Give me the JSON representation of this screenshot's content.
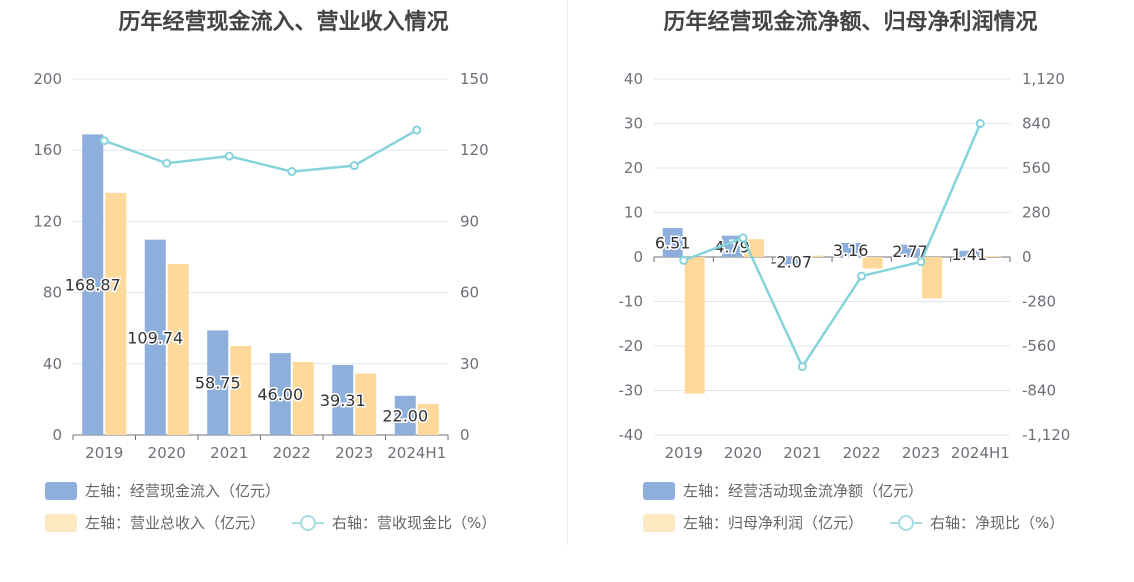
{
  "chart_data": [
    {
      "type": "bar",
      "title": "历年经营现金流入、营业收入情况",
      "categories": [
        "2019",
        "2020",
        "2021",
        "2022",
        "2023",
        "2024H1"
      ],
      "series": [
        {
          "name": "左轴：经营现金流入（亿元）",
          "axis": "left",
          "type": "bar",
          "color": "#8eaedb",
          "values": [
            168.87,
            109.74,
            58.75,
            46.0,
            39.31,
            22.0
          ]
        },
        {
          "name": "左轴：营业总收入（亿元）",
          "axis": "left",
          "type": "bar",
          "color": "#ffd99b",
          "values": [
            136,
            96,
            50,
            41,
            34.5,
            17.5
          ]
        },
        {
          "name": "右轴：营收现金比（%）",
          "axis": "right",
          "type": "line",
          "color": "#86d3d9",
          "values": [
            124,
            114.5,
            117.5,
            111,
            113.5,
            128.5
          ]
        }
      ],
      "data_labels": [
        "168.87",
        "109.74",
        "58.75",
        "46.00",
        "39.31",
        "22.00"
      ],
      "left_axis": {
        "min": 0,
        "max": 200,
        "ticks": [
          "0",
          "40",
          "80",
          "120",
          "160",
          "200"
        ]
      },
      "right_axis": {
        "min": 0,
        "max": 150,
        "ticks": [
          "0",
          "30",
          "60",
          "90",
          "120",
          "150"
        ]
      },
      "grid": true,
      "legend": "bottom-left"
    },
    {
      "type": "bar",
      "title": "历年经营现金流净额、归母净利润情况",
      "categories": [
        "2019",
        "2020",
        "2021",
        "2022",
        "2023",
        "2024H1"
      ],
      "series": [
        {
          "name": "左轴：经营活动现金流净额（亿元）",
          "axis": "left",
          "type": "bar",
          "color": "#8eaedb",
          "values": [
            6.51,
            4.79,
            -2.07,
            3.16,
            2.77,
            1.41
          ]
        },
        {
          "name": "左轴：归母净利润（亿元）",
          "axis": "left",
          "type": "bar",
          "color": "#ffd99b",
          "values": [
            -30.7,
            4.0,
            0.3,
            -2.6,
            -9.3,
            0.2
          ]
        },
        {
          "name": "右轴：净现比（%）",
          "axis": "right",
          "type": "line",
          "color": "#86d3d9",
          "values": [
            -21,
            120,
            -690,
            -120,
            -30,
            840
          ]
        }
      ],
      "data_labels": [
        "6.51",
        "4.79",
        "-2.07",
        "3.16",
        "2.77",
        "1.41"
      ],
      "left_axis": {
        "min": -40,
        "max": 40,
        "ticks": [
          "-40",
          "-30",
          "-20",
          "-10",
          "0",
          "10",
          "20",
          "30",
          "40"
        ]
      },
      "right_axis": {
        "min": -1120,
        "max": 1120,
        "ticks": [
          "-1,120",
          "-840",
          "-560",
          "-280",
          "0",
          "280",
          "560",
          "840",
          "1,120"
        ]
      },
      "grid": true,
      "legend": "bottom-left"
    }
  ]
}
